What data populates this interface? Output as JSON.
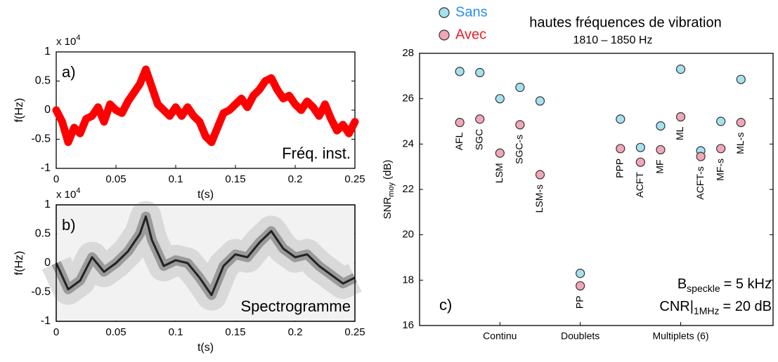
{
  "chart_data": [
    {
      "type": "line",
      "panel_label": "a)",
      "annotation": "Fréq. inst.",
      "multiplier": {
        "base": "x 10",
        "exponent": "4"
      },
      "xlabel": "t(s)",
      "ylabel": "f(Hz)",
      "color": "#ff0000",
      "x": [
        0,
        0.005,
        0.01,
        0.015,
        0.02,
        0.025,
        0.03,
        0.035,
        0.04,
        0.045,
        0.05,
        0.055,
        0.06,
        0.065,
        0.07,
        0.075,
        0.08,
        0.085,
        0.09,
        0.095,
        0.1,
        0.105,
        0.11,
        0.115,
        0.12,
        0.125,
        0.13,
        0.135,
        0.14,
        0.145,
        0.15,
        0.155,
        0.16,
        0.165,
        0.17,
        0.175,
        0.18,
        0.185,
        0.19,
        0.195,
        0.2,
        0.205,
        0.21,
        0.215,
        0.22,
        0.225,
        0.23,
        0.235,
        0.24,
        0.245,
        0.25
      ],
      "values": [
        0.0,
        -0.2,
        -0.55,
        -0.3,
        -0.4,
        -0.15,
        -0.1,
        0.05,
        -0.2,
        0.1,
        0.0,
        -0.05,
        0.15,
        0.3,
        0.45,
        0.7,
        0.4,
        0.1,
        0.0,
        -0.1,
        0.05,
        -0.1,
        0.05,
        -0.1,
        -0.2,
        -0.45,
        -0.55,
        -0.3,
        -0.05,
        0.0,
        0.1,
        0.2,
        0.05,
        0.25,
        0.35,
        0.5,
        0.55,
        0.35,
        0.2,
        0.25,
        0.1,
        0.0,
        0.15,
        0.05,
        -0.1,
        0.1,
        -0.15,
        -0.35,
        -0.25,
        -0.4,
        -0.2
      ],
      "xlim": [
        0,
        0.25
      ],
      "xticks": [
        0,
        0.05,
        0.1,
        0.15,
        0.2,
        0.25
      ],
      "ylim": [
        -1,
        1
      ],
      "yticks": [
        -1,
        -0.5,
        0,
        0.5,
        1
      ]
    },
    {
      "type": "spectrogram",
      "panel_label": "b)",
      "annotation": "Spectrogramme",
      "multiplier": {
        "base": "x 10",
        "exponent": "4"
      },
      "xlabel": "t(s)",
      "ylabel": "f(Hz)",
      "color": "#222222",
      "x": [
        0,
        0.01,
        0.02,
        0.03,
        0.04,
        0.05,
        0.06,
        0.07,
        0.075,
        0.08,
        0.09,
        0.1,
        0.11,
        0.12,
        0.13,
        0.14,
        0.15,
        0.16,
        0.17,
        0.18,
        0.19,
        0.2,
        0.21,
        0.22,
        0.23,
        0.24,
        0.25
      ],
      "values": [
        0.0,
        -0.45,
        -0.3,
        0.1,
        -0.15,
        0.0,
        0.2,
        0.5,
        0.8,
        0.4,
        -0.05,
        0.05,
        0.0,
        -0.25,
        -0.55,
        -0.05,
        0.15,
        0.1,
        0.35,
        0.55,
        0.25,
        0.1,
        0.15,
        -0.05,
        -0.2,
        -0.35,
        -0.25
      ],
      "xlim": [
        0,
        0.25
      ],
      "xticks": [
        0,
        0.05,
        0.1,
        0.15,
        0.2,
        0.25
      ],
      "ylim": [
        -1,
        1
      ],
      "yticks": [
        -1,
        -0.5,
        0,
        0.5,
        1
      ]
    },
    {
      "type": "scatter",
      "panel_label": "c)",
      "title": "hautes fréquences de vibration",
      "subtitle": "1810 – 1850 Hz",
      "ylabel": {
        "main": "SNR",
        "sub": "moy",
        "unit": "(dB)"
      },
      "annotations": [
        {
          "main": "B",
          "sub": "speckle",
          "rest": "= 5 kHz"
        },
        {
          "main": "CNR|",
          "sub": "1MHz",
          "rest": "= 20 dB"
        }
      ],
      "categories": [
        "AFL",
        "SGC",
        "LSM",
        "SGC-s",
        "LSM-s",
        "PP",
        "PPP",
        "ACFT",
        "MF",
        "ML",
        "ACFT-s",
        "MF-s",
        "ML-s"
      ],
      "x": [
        2,
        3,
        4,
        5,
        6,
        8,
        10,
        11,
        12,
        13,
        14,
        15,
        16
      ],
      "series": [
        {
          "name": "Sans",
          "color": "#a6e1f0",
          "text_color": "#2a8ff0",
          "values": [
            27.2,
            27.15,
            26.0,
            26.5,
            25.9,
            18.3,
            25.1,
            23.85,
            24.8,
            27.3,
            23.7,
            25.0,
            26.85
          ]
        },
        {
          "name": "Avec",
          "color": "#f2a6b8",
          "text_color": "#e8202a",
          "values": [
            24.95,
            25.1,
            23.6,
            24.85,
            22.65,
            17.75,
            23.8,
            23.2,
            23.75,
            25.2,
            23.45,
            23.8,
            24.95
          ]
        }
      ],
      "xlim": [
        0,
        17.6
      ],
      "xticks": [
        {
          "value": 4,
          "label": "Continu"
        },
        {
          "value": 8,
          "label": "Doublets"
        },
        {
          "value": 13,
          "label": "Multiplets (6)"
        }
      ],
      "ylim": [
        16,
        28
      ],
      "yticks": [
        16,
        18,
        20,
        22,
        24,
        26,
        28
      ]
    }
  ]
}
